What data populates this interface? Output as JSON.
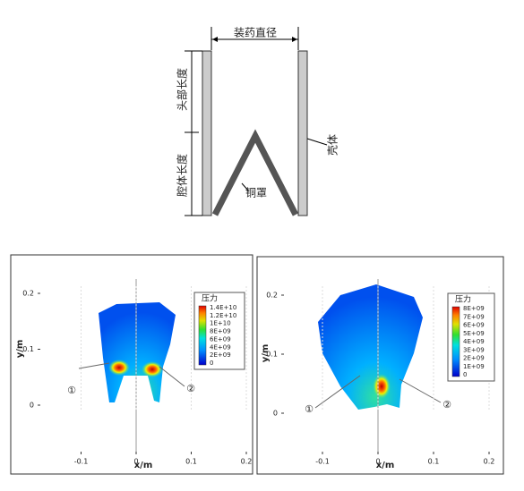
{
  "diagram": {
    "charge_diameter": "装药直径",
    "head_length": "头部长度",
    "cavity_length": "腔体长度",
    "liner": "铜罩",
    "casing": "壳体"
  },
  "panels": [
    {
      "xlabel": "x/m",
      "ylabel": "y/m",
      "xticks": [
        -0.1,
        0,
        0.1,
        0.2
      ],
      "yticks": [
        0,
        0.1,
        0.2
      ],
      "legend": {
        "title": "压力",
        "labels": [
          "1.4E+10",
          "1.2E+10",
          "1E+10",
          "8E+09",
          "6E+09",
          "4E+09",
          "2E+09",
          "0"
        ]
      },
      "markers": [
        "①",
        "②"
      ]
    },
    {
      "xlabel": "x/m",
      "ylabel": "y/m",
      "xticks": [
        -0.1,
        0,
        0.1,
        0.2
      ],
      "yticks": [
        0,
        0.1,
        0.2
      ],
      "legend": {
        "title": "压力",
        "labels": [
          "8E+09",
          "7E+09",
          "6E+09",
          "5E+09",
          "4E+09",
          "3E+09",
          "2E+09",
          "1E+09",
          "0"
        ]
      },
      "markers": [
        "①",
        "②"
      ]
    }
  ]
}
